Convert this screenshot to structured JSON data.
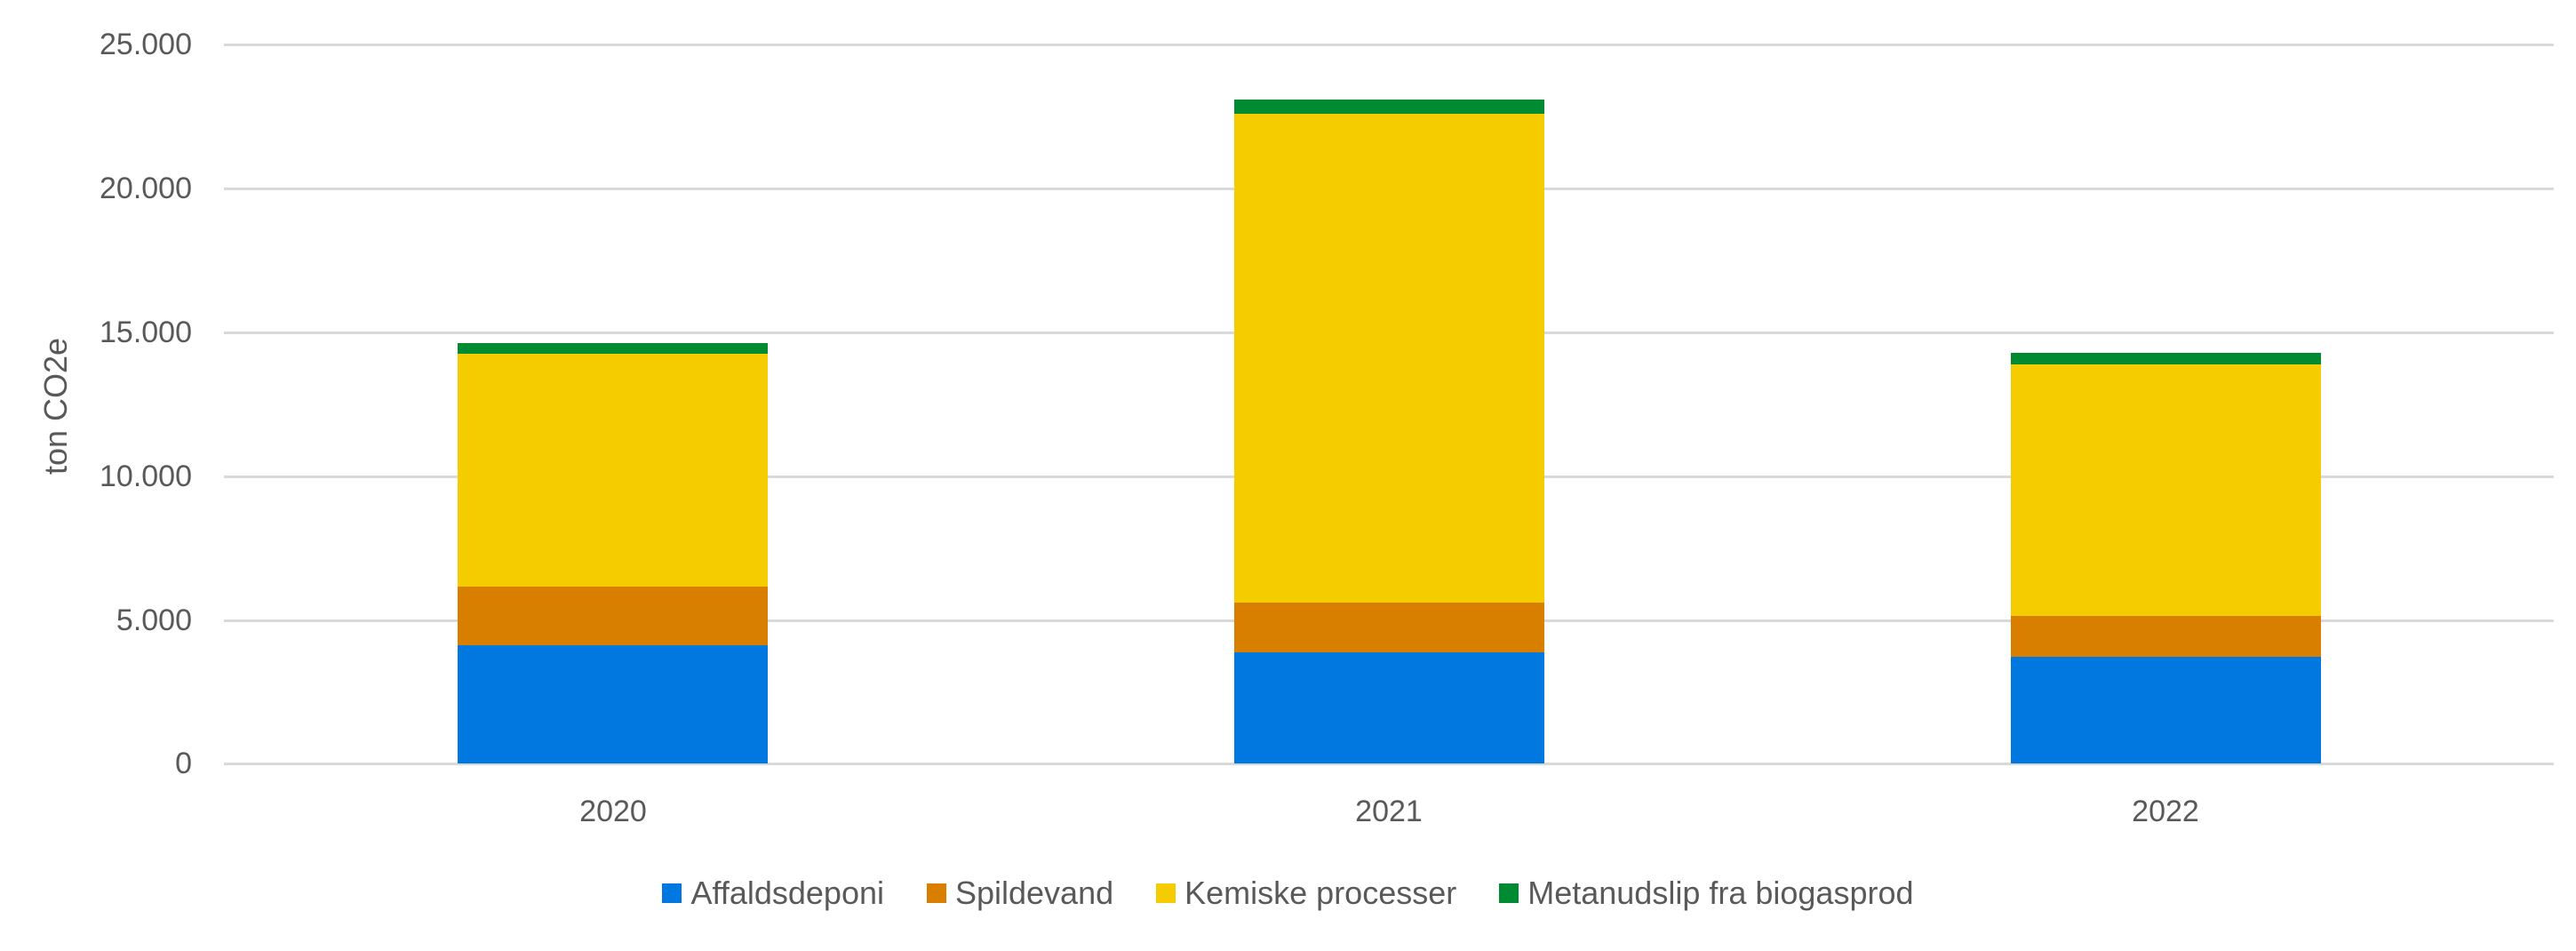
{
  "chart_data": {
    "type": "bar",
    "stacked": true,
    "title": "",
    "xlabel": "",
    "ylabel": "ton CO2e",
    "ylim": [
      0,
      25000
    ],
    "yticks": [
      0,
      5000,
      10000,
      15000,
      20000,
      25000
    ],
    "ytick_labels": [
      "0",
      "5.000",
      "10.000",
      "15.000",
      "20.000",
      "25.000"
    ],
    "grid": true,
    "legend_position": "bottom",
    "categories": [
      "2020",
      "2021",
      "2022"
    ],
    "series": [
      {
        "name": "Affaldsdeponi",
        "color": "#0078E0",
        "values": [
          4100,
          3850,
          3700
        ]
      },
      {
        "name": "Spildevand",
        "color": "#D97F00",
        "values": [
          2050,
          1750,
          1430
        ]
      },
      {
        "name": "Kemiske processer",
        "color": "#F4CC00",
        "values": [
          8100,
          17000,
          8750
        ]
      },
      {
        "name": "Metanudslip fra biogasprod",
        "color": "#008A32",
        "values": [
          370,
          490,
          400
        ]
      }
    ],
    "totals": [
      14620,
      23090,
      14280
    ]
  },
  "axis": {
    "ylabel": "ton CO2e",
    "yticks": [
      "25.000",
      "20.000",
      "15.000",
      "10.000",
      "5.000",
      "0"
    ],
    "xticks": [
      "2020",
      "2021",
      "2022"
    ]
  },
  "legend": [
    {
      "label": "Affaldsdeponi",
      "color": "#0078E0"
    },
    {
      "label": "Spildevand",
      "color": "#D97F00"
    },
    {
      "label": "Kemiske processer",
      "color": "#F4CC00"
    },
    {
      "label": "Metanudslip fra biogasprod",
      "color": "#008A32"
    }
  ]
}
